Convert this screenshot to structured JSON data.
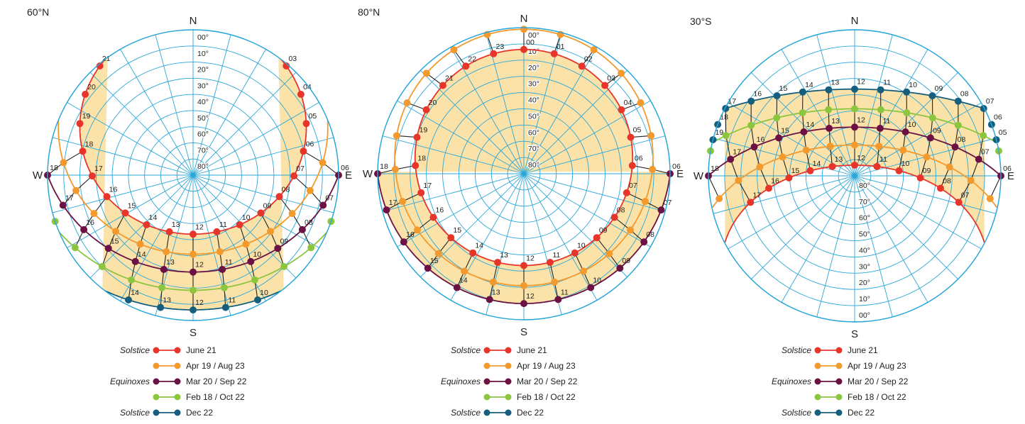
{
  "colors": {
    "grid": "#2aa7d9",
    "band": "#fbe2a8",
    "red": "#e8352b",
    "orange": "#f29a2e",
    "purple": "#6b1143",
    "green": "#8cc63f",
    "navy": "#155e7e",
    "hour_line": "#222222"
  },
  "altitude_labels": [
    "00°",
    "10°",
    "20°",
    "30°",
    "40°",
    "50°",
    "60°",
    "70°",
    "80°"
  ],
  "legend": {
    "solstice_label": "Solstice",
    "equinox_label": "Equinoxes",
    "items": [
      {
        "color_key": "red",
        "label": "June 21",
        "group": "Solstice"
      },
      {
        "color_key": "orange",
        "label": "Apr 19 / Aug 23",
        "group": ""
      },
      {
        "color_key": "purple",
        "label": "Mar 20 / Sep 22",
        "group": "Equinoxes"
      },
      {
        "color_key": "green",
        "label": "Feb 18 / Oct 22",
        "group": ""
      },
      {
        "color_key": "navy",
        "label": "Dec 22",
        "group": "Solstice"
      }
    ]
  },
  "diagrams": [
    {
      "latitude_label": "60°N",
      "north": "N",
      "south": "S",
      "east": "E",
      "west": "W",
      "lat": 60,
      "altitude_label_side": "north",
      "curves": [
        {
          "color_key": "red",
          "dec": 23.44,
          "hours": [
            3,
            4,
            5,
            6,
            7,
            8,
            9,
            10,
            11,
            12,
            13,
            14,
            15,
            16,
            17,
            18,
            19,
            20,
            21
          ],
          "labels": [
            "03",
            "04",
            "05",
            "06",
            "07",
            "08",
            "09",
            "10",
            "11",
            "12",
            "13",
            "14",
            "15",
            "16",
            "17",
            "18",
            "19",
            "20",
            "21"
          ]
        },
        {
          "color_key": "orange",
          "dec": 11.0,
          "hours": [
            6,
            7,
            8,
            9,
            10,
            11,
            12,
            13,
            14,
            15,
            16,
            17,
            18
          ],
          "labels": []
        },
        {
          "color_key": "purple",
          "dec": 0,
          "hours": [
            6,
            7,
            8,
            9,
            10,
            11,
            12,
            13,
            14,
            15,
            16,
            17,
            18
          ],
          "labels": [
            "06",
            "07",
            "08",
            "09",
            "10",
            "11",
            "12",
            "13",
            "14",
            "15",
            "16",
            "17",
            "18"
          ]
        },
        {
          "color_key": "green",
          "dec": -11.3,
          "hours": [
            7,
            8,
            9,
            10,
            11,
            12,
            13,
            14,
            15,
            16,
            17
          ],
          "labels": []
        },
        {
          "color_key": "navy",
          "dec": -23.44,
          "hours": [
            10,
            11,
            12,
            13,
            14
          ],
          "labels": [
            "10",
            "11",
            "12",
            "13",
            "14"
          ]
        }
      ]
    },
    {
      "latitude_label": "80°N",
      "north": "N",
      "south": "S",
      "east": "E",
      "west": "W",
      "lat": 80,
      "altitude_label_side": "north",
      "curves": [
        {
          "color_key": "red",
          "dec": 23.44,
          "hours": [
            0,
            1,
            2,
            3,
            4,
            5,
            6,
            7,
            8,
            9,
            10,
            11,
            12,
            13,
            14,
            15,
            16,
            17,
            18,
            19,
            20,
            21,
            22,
            23
          ],
          "labels": [
            "00",
            "01",
            "02",
            "03",
            "04",
            "05",
            "06",
            "07",
            "08",
            "09",
            "10",
            "11",
            "12",
            "13",
            "14",
            "15",
            "16",
            "17",
            "18",
            "19",
            "20",
            "21",
            "22",
            "23"
          ]
        },
        {
          "color_key": "orange",
          "dec": 11.0,
          "hours": [
            0,
            1,
            2,
            3,
            4,
            5,
            6,
            7,
            8,
            9,
            10,
            11,
            12,
            13,
            14,
            15,
            16,
            17,
            18,
            19,
            20,
            21,
            22,
            23
          ],
          "labels": []
        },
        {
          "color_key": "purple",
          "dec": 0,
          "hours": [
            6,
            7,
            8,
            9,
            10,
            11,
            12,
            13,
            14,
            15,
            16,
            17,
            18
          ],
          "labels": [
            "06",
            "07",
            "08",
            "09",
            "10",
            "11",
            "12",
            "13",
            "14",
            "15",
            "16",
            "17",
            "18"
          ]
        }
      ]
    },
    {
      "latitude_label": "30°S",
      "north": "N",
      "south": "S",
      "east": "E",
      "west": "W",
      "lat": -30,
      "altitude_label_side": "south",
      "curves": [
        {
          "color_key": "red",
          "dec": -23.44,
          "hours": [
            7,
            8,
            9,
            10,
            11,
            12,
            13,
            14,
            15,
            16,
            17
          ],
          "labels": [
            "07",
            "08",
            "09",
            "10",
            "11",
            "12",
            "13",
            "14",
            "15",
            "16",
            "17"
          ]
        },
        {
          "color_key": "orange",
          "dec": -11.0,
          "hours": [
            6,
            7,
            8,
            9,
            10,
            11,
            12,
            13,
            14,
            15,
            16,
            17,
            18
          ],
          "labels": []
        },
        {
          "color_key": "purple",
          "dec": 0,
          "hours": [
            6,
            7,
            8,
            9,
            10,
            11,
            12,
            13,
            14,
            15,
            16,
            17,
            18
          ],
          "labels": [
            "06",
            "07",
            "08",
            "09",
            "10",
            "11",
            "12",
            "13",
            "14",
            "15",
            "16",
            "17",
            "18"
          ]
        },
        {
          "color_key": "green",
          "dec": 11.3,
          "hours": [
            6,
            7,
            8,
            9,
            10,
            11,
            12,
            13,
            14,
            15,
            16,
            17,
            18
          ],
          "labels": []
        },
        {
          "color_key": "navy",
          "dec": 23.44,
          "hours": [
            5,
            6,
            7,
            8,
            9,
            10,
            11,
            12,
            13,
            14,
            15,
            16,
            17,
            18,
            19
          ],
          "labels": [
            "05",
            "06",
            "07",
            "08",
            "09",
            "10",
            "11",
            "12",
            "13",
            "14",
            "15",
            "16",
            "17",
            "18",
            "19"
          ]
        }
      ]
    }
  ]
}
